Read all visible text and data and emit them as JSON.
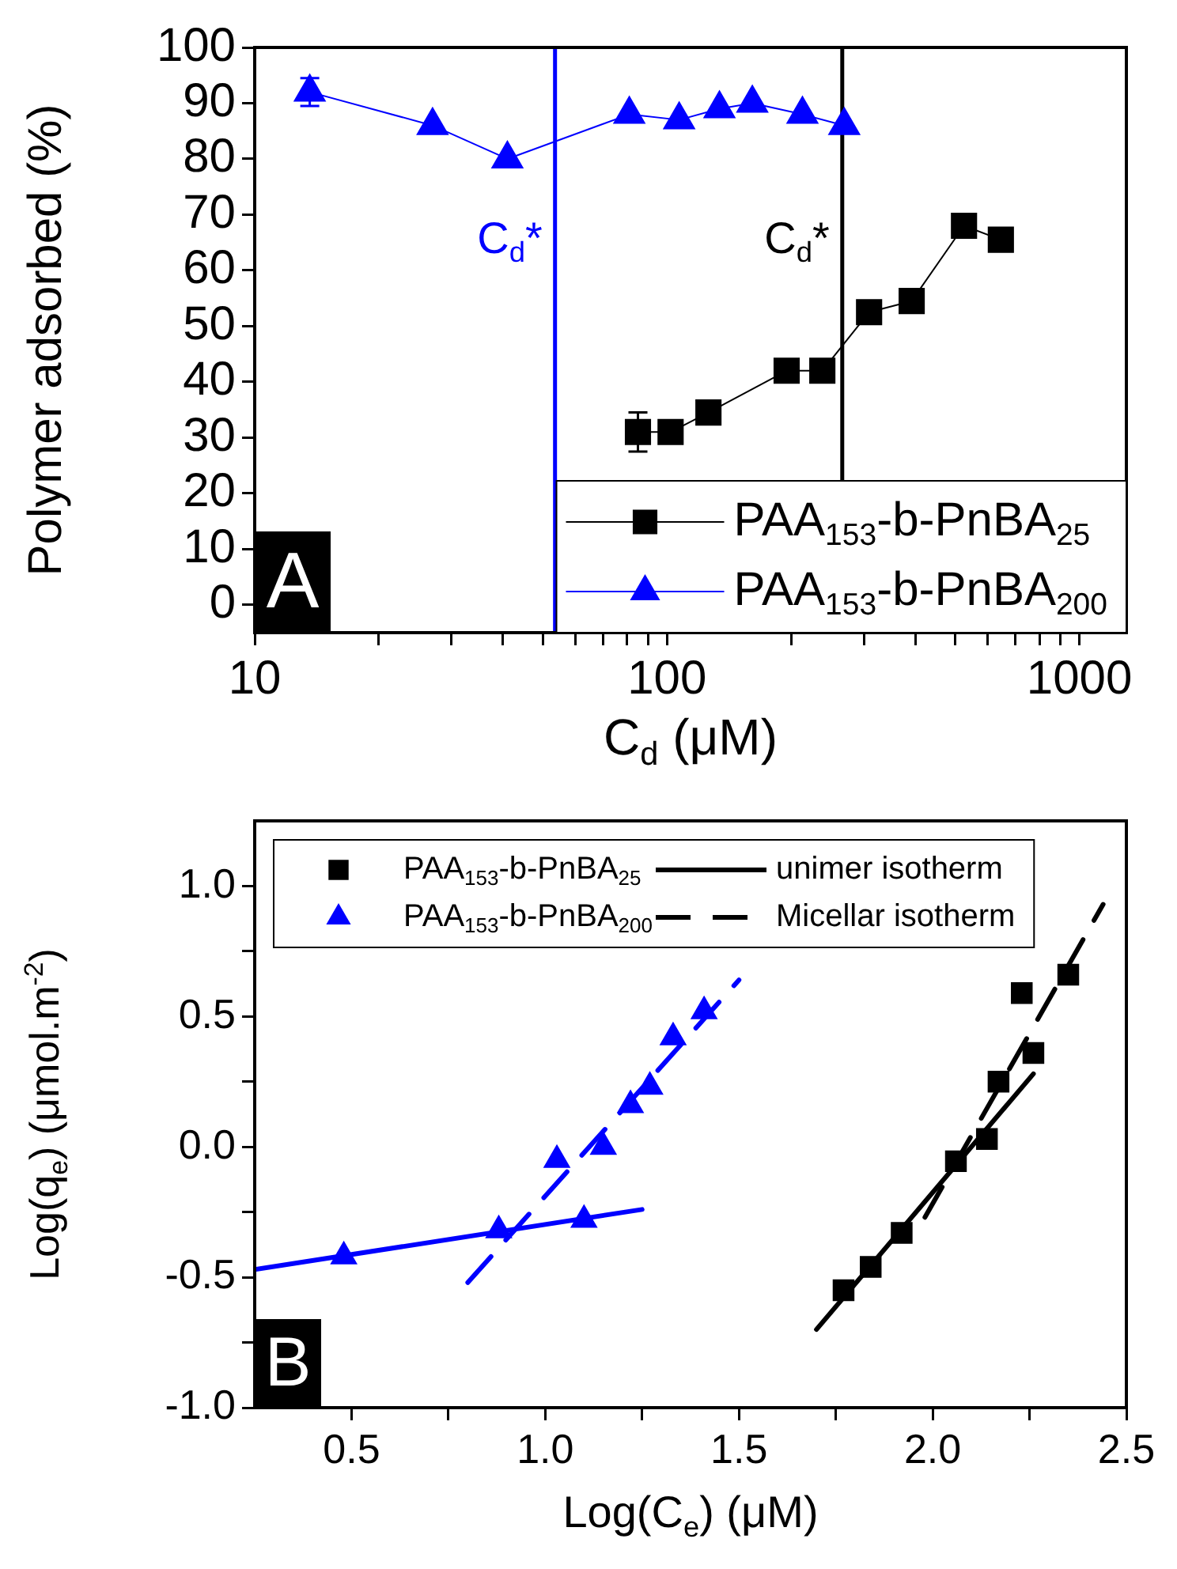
{
  "chart_data": [
    {
      "type": "line",
      "xlabel": "C$_{d}$ (μM)",
      "ylabel": "Polymer adsorbed (%)",
      "annotations": [
        "A"
      ],
      "log": "x",
      "grid": false,
      "legend": "bottom right",
      "xlim": [
        10,
        1300
      ],
      "xticks": [
        10,
        {
          "value": 20,
          "label": null
        },
        {
          "value": 30,
          "label": null
        },
        {
          "value": 40,
          "label": null
        },
        {
          "value": 50,
          "label": null
        },
        {
          "value": 60,
          "label": null
        },
        {
          "value": 70,
          "label": null
        },
        {
          "value": 80,
          "label": null
        },
        {
          "value": 90,
          "label": null
        },
        100,
        {
          "value": 200,
          "label": null
        },
        {
          "value": 300,
          "label": null
        },
        {
          "value": 400,
          "label": null
        },
        {
          "value": 500,
          "label": null
        },
        {
          "value": 600,
          "label": null
        },
        {
          "value": 700,
          "label": null
        },
        {
          "value": 800,
          "label": null
        },
        {
          "value": 900,
          "label": null
        },
        1000
      ],
      "ylim": [
        -5,
        100
      ],
      "yticks": [
        0,
        10,
        20,
        30,
        40,
        50,
        60,
        70,
        80,
        90,
        100
      ],
      "ref_lines": [
        {
          "axis": "x",
          "value": 53.5,
          "label": "C$_{d}$*",
          "color": "#0000ff"
        },
        {
          "axis": "x",
          "value": 266,
          "label": "C$_{d}$*",
          "color": "#000000"
        }
      ],
      "series": [
        {
          "name": "PAA$_{153}$-b-PnBA$_{25}$",
          "color": "#000000",
          "marker": "square",
          "x": [
            85,
            102,
            126,
            195,
            238,
            309,
            392,
            525,
            645
          ],
          "values": [
            31,
            31,
            34.5,
            42,
            42,
            52.5,
            54.5,
            68,
            65.5
          ],
          "errors": [
            3.5,
            null,
            null,
            null,
            null,
            null,
            null,
            null,
            null
          ]
        },
        {
          "name": "PAA$_{153}$-b-PnBA$_{200}$",
          "color": "#0000ff",
          "marker": "triangle",
          "x": [
            13.6,
            27,
            41,
            81,
            107,
            134,
            161,
            213,
            269
          ],
          "values": [
            92,
            86,
            80,
            88,
            87,
            89,
            90,
            88,
            86
          ],
          "errors": [
            2.5,
            null,
            null,
            null,
            null,
            null,
            null,
            null,
            null
          ]
        }
      ]
    },
    {
      "type": "scatter",
      "xlabel": "Log(C$_{e}$) (μM)",
      "ylabel": "Log(q$_{e}$) (μmol.m$^{-2}$)",
      "annotations": [
        "B"
      ],
      "grid": false,
      "legend": "top left",
      "xlim": [
        0.25,
        2.5
      ],
      "xticks": [
        0.5,
        {
          "value": 0.75,
          "label": null
        },
        {
          "value": 1,
          "label": "1.0"
        },
        {
          "value": 1.25,
          "label": null
        },
        1.5,
        {
          "value": 1.75,
          "label": null
        },
        {
          "value": 2,
          "label": "2.0"
        },
        {
          "value": 2.25,
          "label": null
        },
        2.5
      ],
      "ylim": [
        -1,
        1.25
      ],
      "yticks": [
        {
          "value": -1,
          "label": "-1.0"
        },
        {
          "value": -0.75,
          "label": null
        },
        {
          "value": -0.5,
          "label": "-0.5"
        },
        {
          "value": -0.25,
          "label": null
        },
        {
          "value": 0,
          "label": "0.0"
        },
        {
          "value": 0.25,
          "label": null
        },
        {
          "value": 0.5,
          "label": "0.5"
        },
        {
          "value": 0.75,
          "label": null
        },
        {
          "value": 1,
          "label": "1.0"
        }
      ],
      "series": [
        {
          "name": "PAA$_{153}$-b-PnBA$_{25}$",
          "color": "#000000",
          "marker": "square",
          "x": [
            1.77,
            1.84,
            1.92,
            2.06,
            2.14,
            2.17,
            2.23,
            2.26,
            2.35
          ],
          "values": [
            -0.55,
            -0.46,
            -0.33,
            -0.055,
            0.03,
            0.25,
            0.59,
            0.36,
            0.66
          ]
        },
        {
          "name": "PAA$_{153}$-b-PnBA$_{200}$",
          "color": "#0000ff",
          "marker": "triangle",
          "x": [
            0.48,
            0.88,
            1.1,
            1.03,
            1.15,
            1.22,
            1.27,
            1.33,
            1.41
          ],
          "values": [
            -0.42,
            -0.32,
            -0.28,
            -0.05,
            0,
            0.16,
            0.23,
            0.42,
            0.52
          ]
        },
        {
          "type": "line",
          "name": "unimer isotherm",
          "color": "#000000",
          "marker": "none",
          "line_style": "solid",
          "x": [
            1.7,
            2.26
          ],
          "values": [
            -0.7,
            0.28
          ]
        },
        {
          "type": "line",
          "name": "Micellar isotherm",
          "color": "#000000",
          "marker": "none",
          "line_style": "dashed",
          "x": [
            1.98,
            2.44
          ],
          "values": [
            -0.27,
            0.93
          ]
        },
        {
          "type": "line",
          "color": "#0000ff",
          "marker": "none",
          "line_style": "solid",
          "x": [
            0.25,
            1.25
          ],
          "values": [
            -0.47,
            -0.24
          ]
        },
        {
          "type": "line",
          "color": "#0000ff",
          "marker": "none",
          "line_style": "dashed",
          "x": [
            0.8,
            1.5
          ],
          "values": [
            -0.52,
            0.64
          ]
        }
      ]
    }
  ]
}
